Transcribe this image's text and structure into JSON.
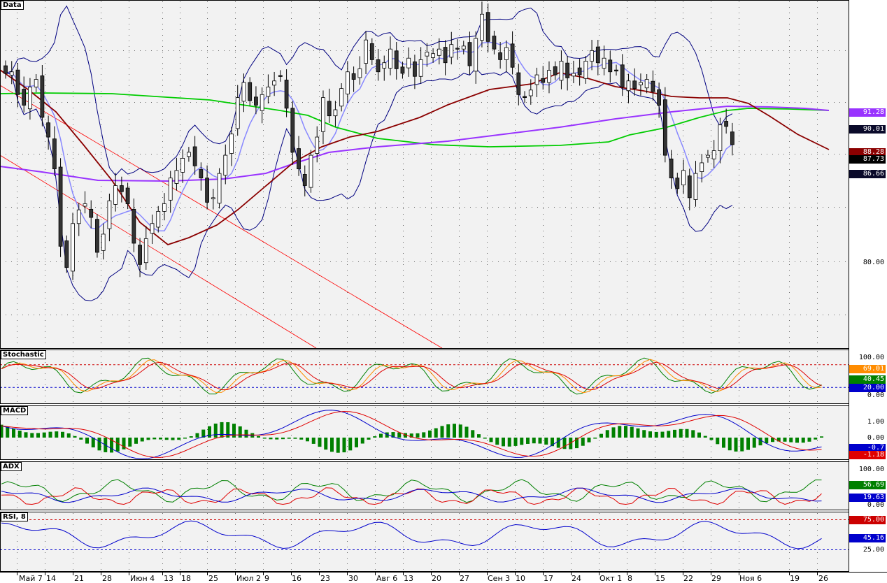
{
  "panels": {
    "main": {
      "label": "Data"
    },
    "stochastic": {
      "label": "Stochastic"
    },
    "macd": {
      "label": "MACD"
    },
    "adx": {
      "label": "ADX"
    },
    "rsi": {
      "label": "RSI, 8"
    }
  },
  "main_axis": {
    "ticks": [
      "80.00"
    ]
  },
  "main_tags": [
    {
      "text": "91.28",
      "bg": "#9933ff",
      "fg": "#ffffff"
    },
    {
      "text": "90.01",
      "bg": "#0a0a2a",
      "fg": "#ffffff"
    },
    {
      "text": "88.28",
      "bg": "#8b0000",
      "fg": "#ffffff"
    },
    {
      "text": "87.73",
      "bg": "#000000",
      "fg": "#ffffff"
    },
    {
      "text": "86.66",
      "bg": "#0a0a2a",
      "fg": "#ffffff"
    }
  ],
  "stoch_axis": {
    "ticks": [
      "100.00",
      "20.00",
      "0.00"
    ]
  },
  "stoch_tags": [
    {
      "text": "69.01",
      "bg": "#ff8c00",
      "fg": "#ffffff"
    },
    {
      "text": "40.45",
      "bg": "#008000",
      "fg": "#ffffff"
    },
    {
      "text": "20.00",
      "bg": "#0000cc",
      "fg": "#ffffff"
    }
  ],
  "macd_axis": {
    "ticks": [
      "1.00",
      "0.00"
    ]
  },
  "macd_tags": [
    {
      "text": "-0.7",
      "bg": "#0000cc",
      "fg": "#ffffff"
    },
    {
      "text": "-1.18",
      "bg": "#e00000",
      "fg": "#ffffff"
    }
  ],
  "adx_axis": {
    "ticks": [
      "100.00",
      "0.00"
    ]
  },
  "adx_tags": [
    {
      "text": "56.69",
      "bg": "#008000",
      "fg": "#ffffff"
    },
    {
      "text": "19.63",
      "bg": "#0000cc",
      "fg": "#ffffff"
    }
  ],
  "rsi_axis": {
    "ticks": [
      "25.00"
    ]
  },
  "rsi_tags": [
    {
      "text": "75.00",
      "bg": "#cc0000",
      "fg": "#ffffff"
    },
    {
      "text": "45.16",
      "bg": "#0000cc",
      "fg": "#ffffff"
    }
  ],
  "dates": [
    "Май 7",
    "14",
    "21",
    "28",
    "Июн 4",
    "13",
    "18",
    "25",
    "Июл 2",
    "9",
    "16",
    "23",
    "30",
    "Авг 6",
    "13",
    "20",
    "27",
    "Сен 3",
    "10",
    "17",
    "24",
    "Окт 1",
    "8",
    "15",
    "22",
    "29",
    "Ноя 6",
    "19",
    "26"
  ],
  "colors": {
    "background": "#f2f2f2",
    "candle_up": "#ffffff",
    "candle_down": "#333333",
    "bollinger": "#000080",
    "ma_fast": "#8888ff",
    "ma_mid": "#8b0000",
    "ma_slow": "#9933ff",
    "ma_green": "#00cc00",
    "trendline": "#ff0000",
    "stoch_k": "#008000",
    "stoch_d": "#ff8c00",
    "stoch_slow": "#e00000",
    "macd_hist": "#008000",
    "macd_line": "#0000cc",
    "macd_signal": "#e00000",
    "adx_line": "#0000cc",
    "di_plus": "#008000",
    "di_minus": "#e00000",
    "rsi_line": "#0000cc",
    "rsi_upper": "#cc0000",
    "rsi_lower": "#0000cc"
  },
  "chart_data": {
    "type": "candlestick",
    "title": "",
    "x_labels": [
      "Май 7",
      "14",
      "21",
      "28",
      "Июн 4",
      "13",
      "18",
      "25",
      "Июл 2",
      "9",
      "16",
      "23",
      "30",
      "Авг 6",
      "13",
      "20",
      "27",
      "Сен 3",
      "10",
      "17",
      "24",
      "Окт 1",
      "8",
      "15",
      "22",
      "29",
      "Ноя 6",
      "19",
      "26"
    ],
    "price_axis": {
      "ylim": [
        75.7,
        97.3
      ],
      "ticks": [
        80.0
      ]
    },
    "current_values": {
      "ma_purple": 91.28,
      "bollinger_upper": 90.01,
      "ma_darkred": 88.28,
      "close": 87.73,
      "bollinger_lower": 86.66
    },
    "close_series": [
      92.4,
      92.5,
      91.0,
      90.3,
      91.5,
      92.0,
      89.5,
      88.2,
      86.1,
      81.0,
      79.6,
      82.5,
      83.4,
      83.8,
      82.9,
      80.6,
      81.8,
      84.0,
      85.0,
      84.6,
      83.8,
      81.2,
      79.8,
      81.5,
      82.5,
      83.3,
      83.8,
      85.5,
      86.0,
      86.8,
      87.2,
      86.3,
      85.5,
      83.9,
      84.2,
      85.8,
      87.0,
      88.4,
      90.8,
      91.8,
      90.6,
      90.3,
      91.0,
      91.5,
      91.9,
      92.2,
      90.1,
      87.2,
      86.1,
      85.0,
      87.0,
      88.2,
      90.8,
      89.6,
      90.0,
      91.4,
      92.5,
      92.0,
      92.7,
      94.6,
      93.3,
      92.5,
      93.1,
      94.0,
      92.7,
      92.4,
      93.4,
      92.2,
      93.3,
      93.8,
      93.7,
      94.0,
      93.1,
      94.3,
      94.0,
      94.2,
      92.9,
      94.7,
      96.3,
      94.5,
      94.0,
      93.3,
      94.1,
      92.8,
      91.0,
      90.8,
      91.3,
      92.3,
      91.8,
      92.6,
      92.3,
      93.2,
      92.1,
      92.4,
      92.3,
      93.2,
      93.9,
      93.1,
      93.4,
      92.5,
      92.6,
      91.5,
      91.9,
      91.4,
      91.8,
      92.0,
      91.2,
      90.3,
      87.0,
      85.5,
      84.8,
      86.0,
      84.2,
      85.8,
      86.5,
      87.0,
      87.3,
      89.0,
      88.9,
      87.7
    ],
    "indicators": {
      "stochastic": {
        "ylim": [
          0,
          100
        ],
        "levels": [
          20,
          80
        ],
        "current": {
          "orange": 69.01,
          "green": 40.45
        }
      },
      "macd": {
        "ylim": [
          -1.9,
          1.6
        ],
        "ticks": [
          1.0,
          0.0
        ],
        "current": {
          "macd": -0.7,
          "signal": -1.18
        }
      },
      "adx": {
        "ylim": [
          0,
          100
        ],
        "ticks": [
          100,
          0
        ],
        "current": {
          "di_plus": 56.69,
          "adx": 19.63
        }
      },
      "rsi": {
        "period": 8,
        "ylim": [
          0,
          100
        ],
        "levels": [
          25,
          75
        ],
        "current": 45.16
      }
    }
  }
}
